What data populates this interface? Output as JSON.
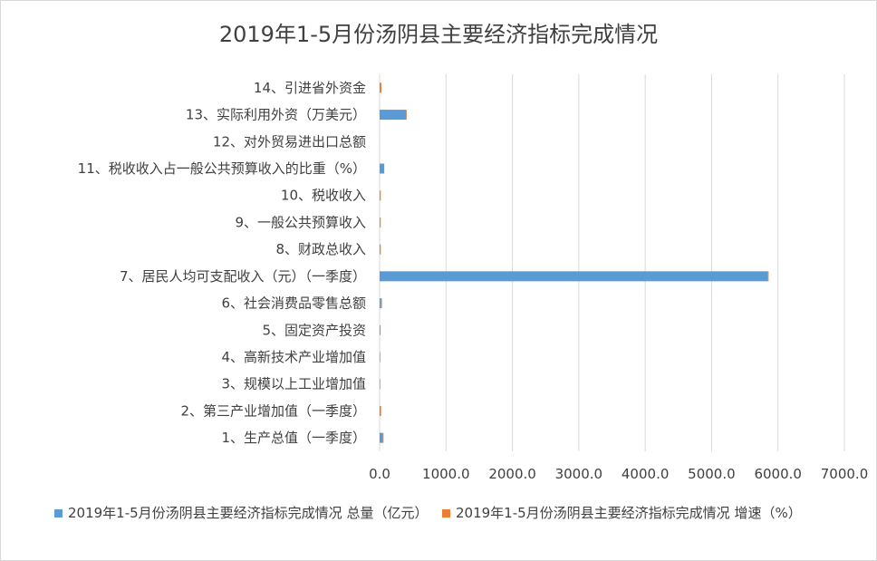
{
  "colors": {
    "series1": "#5b9bd5",
    "series2": "#ed7d31",
    "grid": "#d9d9d9",
    "text": "#404040"
  },
  "chart_data": {
    "type": "bar",
    "orientation": "horizontal",
    "title": "2019年1-5月份汤阴县主要经济指标完成情况",
    "xlim": [
      0,
      7000
    ],
    "x_ticks": [
      "0.0",
      "1000.0",
      "2000.0",
      "3000.0",
      "4000.0",
      "5000.0",
      "6000.0",
      "7000.0"
    ],
    "grid": true,
    "legend_position": "bottom",
    "categories": [
      "1、生产总值（一季度）",
      "2、第三产业增加值（一季度）",
      "3、规模以上工业增加值",
      "4、高新技术产业增加值",
      "5、固定资产投资",
      "6、社会消费品零售总额",
      "7、居民人均可支配收入（元）（一季度）",
      "8、财政总收入",
      "9、一般公共预算收入",
      "10、税收收入",
      "11、税收收入占一般公共预算收入的比重（%）",
      "12、对外贸易进出口总额",
      "13、实际利用外资（万美元）",
      "14、引进省外资金"
    ],
    "series": [
      {
        "name": "2019年1-5月份汤阴县主要经济指标完成情况 总量（亿元）",
        "values": [
          50,
          15,
          3,
          2,
          5,
          25,
          5850,
          6,
          4,
          3,
          70,
          0.5,
          400,
          12
        ]
      },
      {
        "name": "2019年1-5月份汤阴县主要经济指标完成情况 增速（%）",
        "values": [
          9,
          8,
          8,
          9,
          10,
          10,
          9,
          12,
          13,
          15,
          0,
          0,
          9,
          15
        ]
      }
    ]
  }
}
